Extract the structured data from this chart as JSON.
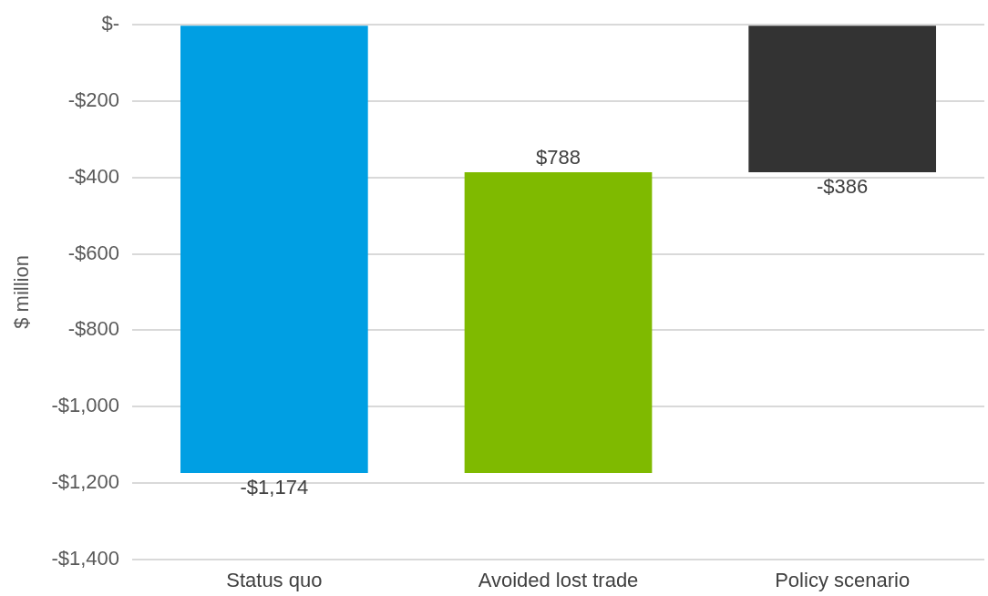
{
  "chart_data": {
    "type": "bar",
    "ylabel": "$ million",
    "categories": [
      "Status quo",
      "Avoided lost trade",
      "Policy scenario"
    ],
    "values": [
      -1174,
      788,
      -386
    ],
    "base": [
      0,
      -1174,
      0
    ],
    "colors": [
      "#009fe3",
      "#7fba00",
      "#333333"
    ],
    "value_labels": [
      "-$1,174",
      "$788",
      "-$386"
    ],
    "ylim": [
      -1400,
      0
    ],
    "yticks": [
      {
        "value": 0,
        "label": "$-"
      },
      {
        "value": -200,
        "label": "-$200"
      },
      {
        "value": -400,
        "label": "-$400"
      },
      {
        "value": -600,
        "label": "-$600"
      },
      {
        "value": -800,
        "label": "-$800"
      },
      {
        "value": -1000,
        "label": "-$1,000"
      },
      {
        "value": -1200,
        "label": "-$1,200"
      },
      {
        "value": -1400,
        "label": "-$1,400"
      }
    ],
    "grid": "y",
    "legend": false
  }
}
